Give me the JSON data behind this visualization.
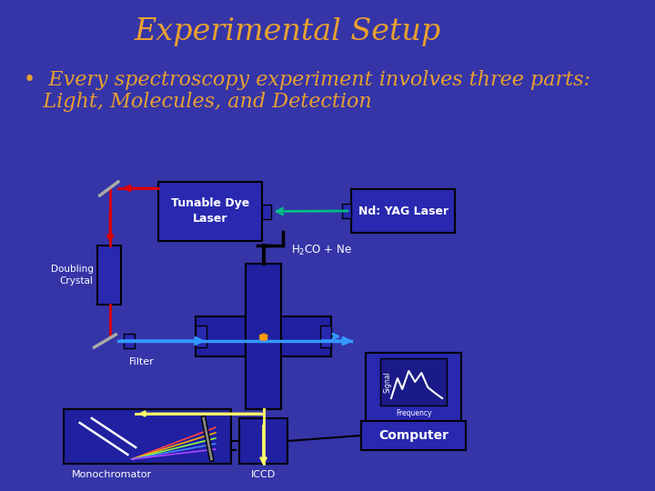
{
  "title": "Experimental Setup",
  "title_color": "#E8A030",
  "title_fontsize": 24,
  "background_color": "#3535A8",
  "bullet_line1": "•  Every spectroscopy experiment involves three parts:",
  "bullet_line2": "   Light, Molecules, and Detection",
  "bullet_color": "#E8A030",
  "bullet_fontsize": 16,
  "box_fc": "#2828B0",
  "box_ec": "#000000",
  "label_white": "#FFFFFF",
  "arrow_red": "#DD0000",
  "arrow_blue": "#3399FF",
  "arrow_green": "#00BB88",
  "arrow_yellow": "#FFFF66",
  "arrow_orange": "#FF9900",
  "comp_bg": "#3535A8",
  "screen_bg": "#2828B0",
  "screen_inner_bg": "#1A1A88"
}
